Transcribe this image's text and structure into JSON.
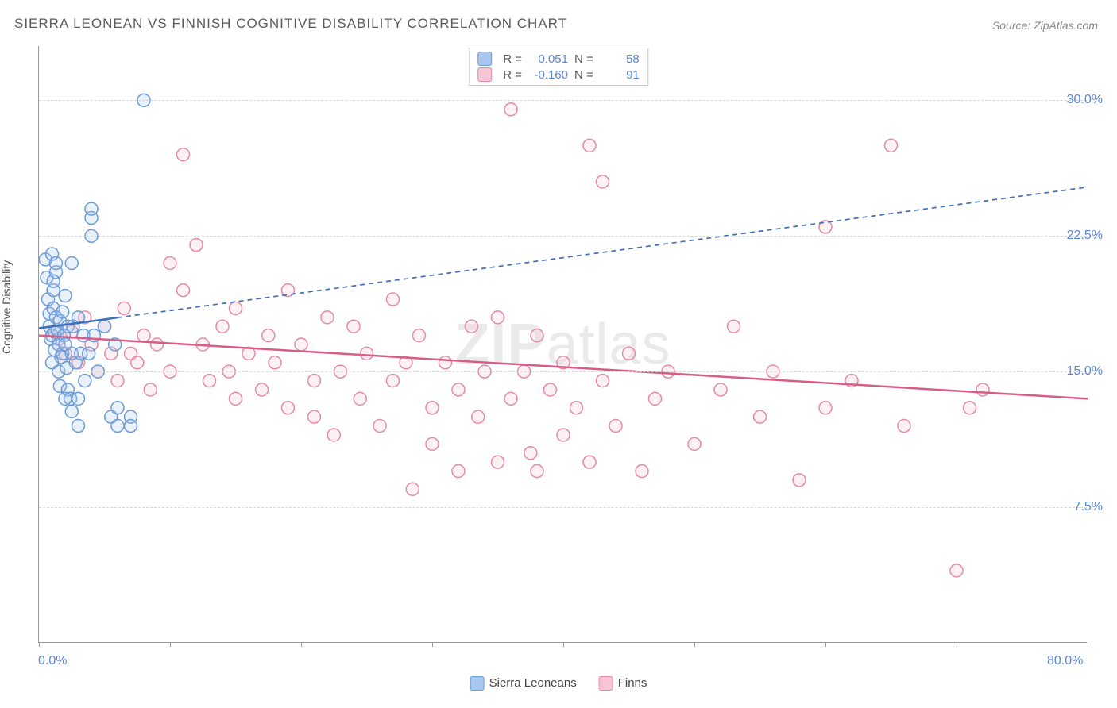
{
  "title": "SIERRA LEONEAN VS FINNISH COGNITIVE DISABILITY CORRELATION CHART",
  "source_label": "Source: ZipAtlas.com",
  "watermark": "ZIPatlas",
  "ylabel": "Cognitive Disability",
  "plot": {
    "type": "scatter",
    "background_color": "#ffffff",
    "grid_color": "#d8d8d8",
    "axis_color": "#999999",
    "tick_label_color": "#5b87d6",
    "xlim": [
      0,
      80
    ],
    "ylim": [
      0,
      33
    ],
    "x_ticks": [
      0,
      10,
      20,
      30,
      40,
      50,
      60,
      70,
      80
    ],
    "x_tick_labels": {
      "0": "0.0%",
      "80": "80.0%"
    },
    "y_gridlines": [
      7.5,
      15.0,
      22.5,
      30.0
    ],
    "y_tick_labels": [
      "7.5%",
      "15.0%",
      "22.5%",
      "30.0%"
    ],
    "label_fontsize": 14,
    "tick_fontsize": 16,
    "marker_radius": 8,
    "marker_stroke_width": 1.5,
    "marker_fill_opacity": 0.25,
    "trend_line_width": 2.5,
    "trend_dash": "6 5"
  },
  "series": {
    "sierra_leoneans": {
      "label": "Sierra Leoneans",
      "color_fill": "#a9c6ec",
      "color_stroke": "#6b9bd8",
      "trend_color": "#3f6fb5",
      "R": "0.051",
      "N": "58",
      "trend_start": [
        0,
        17.4
      ],
      "trend_end": [
        80,
        25.2
      ],
      "data_extent_x": 6,
      "points": [
        [
          0.5,
          21.2
        ],
        [
          0.6,
          20.2
        ],
        [
          0.7,
          19.0
        ],
        [
          0.8,
          17.5
        ],
        [
          0.8,
          18.2
        ],
        [
          0.9,
          16.8
        ],
        [
          1.0,
          17.0
        ],
        [
          1.0,
          15.5
        ],
        [
          1.1,
          18.5
        ],
        [
          1.1,
          19.5
        ],
        [
          1.2,
          17.2
        ],
        [
          1.2,
          16.2
        ],
        [
          1.3,
          18.0
        ],
        [
          1.3,
          20.5
        ],
        [
          1.4,
          17.3
        ],
        [
          1.5,
          15.0
        ],
        [
          1.5,
          16.5
        ],
        [
          1.6,
          17.8
        ],
        [
          1.6,
          14.2
        ],
        [
          1.7,
          15.8
        ],
        [
          1.8,
          16.0
        ],
        [
          1.8,
          18.3
        ],
        [
          1.9,
          17.0
        ],
        [
          2.0,
          19.2
        ],
        [
          2.0,
          16.5
        ],
        [
          2.1,
          15.2
        ],
        [
          2.2,
          14.0
        ],
        [
          2.2,
          17.5
        ],
        [
          2.4,
          13.5
        ],
        [
          2.5,
          16.0
        ],
        [
          2.5,
          21.0
        ],
        [
          2.6,
          17.5
        ],
        [
          2.8,
          15.5
        ],
        [
          3.0,
          18.0
        ],
        [
          3.0,
          13.5
        ],
        [
          3.2,
          16.0
        ],
        [
          3.4,
          17.0
        ],
        [
          3.5,
          14.5
        ],
        [
          3.8,
          16.0
        ],
        [
          4.0,
          23.5
        ],
        [
          4.0,
          24.0
        ],
        [
          4.0,
          22.5
        ],
        [
          4.2,
          17.0
        ],
        [
          4.5,
          15.0
        ],
        [
          5.0,
          17.5
        ],
        [
          5.5,
          12.5
        ],
        [
          5.8,
          16.5
        ],
        [
          6.0,
          13.0
        ],
        [
          6.0,
          12.0
        ],
        [
          7.0,
          12.5
        ],
        [
          7.0,
          12.0
        ],
        [
          1.0,
          21.5
        ],
        [
          1.1,
          20.0
        ],
        [
          1.3,
          21.0
        ],
        [
          2.0,
          13.5
        ],
        [
          2.5,
          12.8
        ],
        [
          3.0,
          12.0
        ],
        [
          8.0,
          30.0
        ]
      ]
    },
    "finns": {
      "label": "Finns",
      "color_fill": "#f7c6d4",
      "color_stroke": "#e48aa6",
      "trend_color": "#d85c86",
      "R": "-0.160",
      "N": "91",
      "trend_start": [
        0,
        17.0
      ],
      "trend_end": [
        80,
        13.5
      ],
      "data_extent_x": 80,
      "points": [
        [
          1.5,
          16.8
        ],
        [
          2.0,
          16.0
        ],
        [
          2.5,
          17.2
        ],
        [
          3.0,
          15.5
        ],
        [
          3.5,
          18.0
        ],
        [
          4.0,
          16.5
        ],
        [
          4.5,
          15.0
        ],
        [
          5.0,
          17.5
        ],
        [
          5.5,
          16.0
        ],
        [
          6.0,
          14.5
        ],
        [
          6.5,
          18.5
        ],
        [
          7.0,
          16.0
        ],
        [
          7.5,
          15.5
        ],
        [
          8.0,
          17.0
        ],
        [
          8.5,
          14.0
        ],
        [
          9.0,
          16.5
        ],
        [
          10.0,
          15.0
        ],
        [
          10.0,
          21.0
        ],
        [
          11.0,
          19.5
        ],
        [
          11.0,
          27.0
        ],
        [
          12.0,
          22.0
        ],
        [
          12.5,
          16.5
        ],
        [
          13.0,
          14.5
        ],
        [
          14.0,
          17.5
        ],
        [
          14.5,
          15.0
        ],
        [
          15.0,
          13.5
        ],
        [
          15.0,
          18.5
        ],
        [
          16.0,
          16.0
        ],
        [
          17.0,
          14.0
        ],
        [
          17.5,
          17.0
        ],
        [
          18.0,
          15.5
        ],
        [
          19.0,
          13.0
        ],
        [
          19.0,
          19.5
        ],
        [
          20.0,
          16.5
        ],
        [
          21.0,
          14.5
        ],
        [
          21.0,
          12.5
        ],
        [
          22.0,
          18.0
        ],
        [
          22.5,
          11.5
        ],
        [
          23.0,
          15.0
        ],
        [
          24.0,
          17.5
        ],
        [
          24.5,
          13.5
        ],
        [
          25.0,
          16.0
        ],
        [
          26.0,
          12.0
        ],
        [
          27.0,
          14.5
        ],
        [
          27.0,
          19.0
        ],
        [
          28.0,
          15.5
        ],
        [
          28.5,
          8.5
        ],
        [
          29.0,
          17.0
        ],
        [
          30.0,
          13.0
        ],
        [
          30.0,
          11.0
        ],
        [
          31.0,
          15.5
        ],
        [
          32.0,
          9.5
        ],
        [
          32.0,
          14.0
        ],
        [
          33.0,
          17.5
        ],
        [
          33.5,
          12.5
        ],
        [
          34.0,
          15.0
        ],
        [
          35.0,
          10.0
        ],
        [
          35.0,
          18.0
        ],
        [
          36.0,
          29.5
        ],
        [
          36.0,
          13.5
        ],
        [
          37.0,
          15.0
        ],
        [
          37.5,
          10.5
        ],
        [
          38.0,
          9.5
        ],
        [
          38.0,
          17.0
        ],
        [
          39.0,
          14.0
        ],
        [
          40.0,
          11.5
        ],
        [
          40.0,
          15.5
        ],
        [
          41.0,
          13.0
        ],
        [
          42.0,
          10.0
        ],
        [
          42.0,
          27.5
        ],
        [
          43.0,
          14.5
        ],
        [
          43.0,
          25.5
        ],
        [
          44.0,
          12.0
        ],
        [
          45.0,
          16.0
        ],
        [
          46.0,
          9.5
        ],
        [
          47.0,
          13.5
        ],
        [
          48.0,
          15.0
        ],
        [
          50.0,
          11.0
        ],
        [
          52.0,
          14.0
        ],
        [
          53.0,
          17.5
        ],
        [
          55.0,
          12.5
        ],
        [
          56.0,
          15.0
        ],
        [
          58.0,
          9.0
        ],
        [
          60.0,
          13.0
        ],
        [
          60.0,
          23.0
        ],
        [
          62.0,
          14.5
        ],
        [
          65.0,
          27.5
        ],
        [
          66.0,
          12.0
        ],
        [
          70.0,
          4.0
        ],
        [
          71.0,
          13.0
        ],
        [
          72.0,
          14.0
        ]
      ]
    }
  },
  "legend_stats_labels": {
    "R": "R  =",
    "N": "N  ="
  },
  "legend_bottom": [
    "sierra_leoneans",
    "finns"
  ]
}
